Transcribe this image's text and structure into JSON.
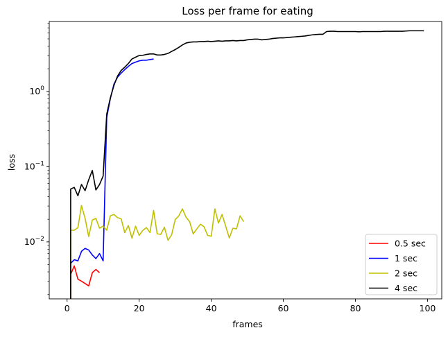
{
  "chart_data": {
    "type": "line",
    "title": "Loss per frame for eating",
    "xlabel": "frames",
    "ylabel": "loss",
    "xlim": [
      -4.95,
      103.95
    ],
    "ylim": [
      0.00175,
      8.5
    ],
    "yscale": "log",
    "x_ticks": [
      0,
      20,
      40,
      60,
      80,
      100
    ],
    "y_ticks": [
      {
        "value": 0.01,
        "base": "10",
        "exp": "−2"
      },
      {
        "value": 0.1,
        "base": "10",
        "exp": "−1"
      },
      {
        "value": 1,
        "base": "10",
        "exp": "0"
      }
    ],
    "legend_position": "lower right",
    "grid": false,
    "series": [
      {
        "name": "0.5 sec",
        "color": "#ff0000",
        "points": [
          [
            1,
            0.0012
          ],
          [
            1,
            0.0037
          ],
          [
            2,
            0.0048
          ],
          [
            3,
            0.0032
          ],
          [
            4,
            0.003
          ],
          [
            5,
            0.0028
          ],
          [
            6,
            0.0026
          ],
          [
            7,
            0.0039
          ],
          [
            8,
            0.0043
          ],
          [
            9,
            0.0039
          ]
        ]
      },
      {
        "name": "1 sec",
        "color": "#0000ff",
        "points": [
          [
            1,
            0.0012
          ],
          [
            1,
            0.0052
          ],
          [
            2,
            0.0058
          ],
          [
            3,
            0.0056
          ],
          [
            4,
            0.0075
          ],
          [
            5,
            0.0082
          ],
          [
            6,
            0.0078
          ],
          [
            7,
            0.0067
          ],
          [
            8,
            0.006
          ],
          [
            9,
            0.007
          ],
          [
            10,
            0.0056
          ],
          [
            11,
            0.45
          ],
          [
            12,
            0.8
          ],
          [
            13,
            1.25
          ],
          [
            14,
            1.55
          ],
          [
            15,
            1.75
          ],
          [
            16,
            1.95
          ],
          [
            17,
            2.15
          ],
          [
            18,
            2.35
          ],
          [
            19,
            2.45
          ],
          [
            20,
            2.55
          ],
          [
            21,
            2.6
          ],
          [
            22,
            2.6
          ],
          [
            23,
            2.65
          ],
          [
            24,
            2.7
          ]
        ]
      },
      {
        "name": "2 sec",
        "color": "#bfbf00",
        "points": [
          [
            1,
            0.0012
          ],
          [
            1,
            0.0143
          ],
          [
            2,
            0.0143
          ],
          [
            3,
            0.0155
          ],
          [
            4,
            0.0305
          ],
          [
            5,
            0.0205
          ],
          [
            6,
            0.0118
          ],
          [
            7,
            0.0195
          ],
          [
            8,
            0.0205
          ],
          [
            9,
            0.0152
          ],
          [
            10,
            0.0162
          ],
          [
            11,
            0.0143
          ],
          [
            12,
            0.0222
          ],
          [
            13,
            0.0232
          ],
          [
            14,
            0.021
          ],
          [
            15,
            0.0203
          ],
          [
            16,
            0.0133
          ],
          [
            17,
            0.0165
          ],
          [
            18,
            0.0112
          ],
          [
            19,
            0.0162
          ],
          [
            20,
            0.0122
          ],
          [
            21,
            0.0142
          ],
          [
            22,
            0.0155
          ],
          [
            23,
            0.0133
          ],
          [
            24,
            0.0262
          ],
          [
            25,
            0.0128
          ],
          [
            26,
            0.0126
          ],
          [
            27,
            0.0157
          ],
          [
            28,
            0.0105
          ],
          [
            29,
            0.0124
          ],
          [
            30,
            0.0198
          ],
          [
            31,
            0.0222
          ],
          [
            32,
            0.0275
          ],
          [
            33,
            0.0213
          ],
          [
            34,
            0.0186
          ],
          [
            35,
            0.0128
          ],
          [
            36,
            0.0149
          ],
          [
            37,
            0.0172
          ],
          [
            38,
            0.0159
          ],
          [
            39,
            0.0122
          ],
          [
            40,
            0.0119
          ],
          [
            41,
            0.0275
          ],
          [
            42,
            0.0178
          ],
          [
            43,
            0.0232
          ],
          [
            44,
            0.0162
          ],
          [
            45,
            0.0113
          ],
          [
            46,
            0.0152
          ],
          [
            47,
            0.0149
          ],
          [
            48,
            0.0222
          ],
          [
            49,
            0.0186
          ]
        ]
      },
      {
        "name": "4 sec",
        "color": "#000000",
        "points": [
          [
            1,
            0.0012
          ],
          [
            1,
            0.0505
          ],
          [
            2,
            0.053
          ],
          [
            3,
            0.041
          ],
          [
            4,
            0.058
          ],
          [
            5,
            0.048
          ],
          [
            6,
            0.067
          ],
          [
            7,
            0.089
          ],
          [
            8,
            0.049
          ],
          [
            9,
            0.058
          ],
          [
            10,
            0.075
          ],
          [
            11,
            0.5
          ],
          [
            12,
            0.82
          ],
          [
            13,
            1.2
          ],
          [
            14,
            1.6
          ],
          [
            15,
            1.9
          ],
          [
            16,
            2.1
          ],
          [
            17,
            2.35
          ],
          [
            18,
            2.7
          ],
          [
            19,
            2.85
          ],
          [
            20,
            3.0
          ],
          [
            21,
            3.02
          ],
          [
            22,
            3.1
          ],
          [
            23,
            3.15
          ],
          [
            24,
            3.15
          ],
          [
            25,
            3.05
          ],
          [
            26,
            3.05
          ],
          [
            27,
            3.1
          ],
          [
            28,
            3.2
          ],
          [
            29,
            3.4
          ],
          [
            30,
            3.6
          ],
          [
            31,
            3.85
          ],
          [
            32,
            4.15
          ],
          [
            33,
            4.4
          ],
          [
            34,
            4.5
          ],
          [
            35,
            4.55
          ],
          [
            36,
            4.55
          ],
          [
            37,
            4.6
          ],
          [
            38,
            4.6
          ],
          [
            39,
            4.65
          ],
          [
            40,
            4.6
          ],
          [
            41,
            4.65
          ],
          [
            42,
            4.7
          ],
          [
            43,
            4.65
          ],
          [
            44,
            4.7
          ],
          [
            45,
            4.7
          ],
          [
            46,
            4.75
          ],
          [
            47,
            4.7
          ],
          [
            48,
            4.75
          ],
          [
            49,
            4.75
          ],
          [
            50,
            4.85
          ],
          [
            51,
            4.9
          ],
          [
            52,
            4.95
          ],
          [
            53,
            4.95
          ],
          [
            54,
            4.85
          ],
          [
            55,
            4.9
          ],
          [
            56,
            4.95
          ],
          [
            57,
            5.05
          ],
          [
            58,
            5.1
          ],
          [
            59,
            5.15
          ],
          [
            60,
            5.15
          ],
          [
            61,
            5.2
          ],
          [
            62,
            5.25
          ],
          [
            63,
            5.3
          ],
          [
            64,
            5.35
          ],
          [
            65,
            5.4
          ],
          [
            66,
            5.45
          ],
          [
            67,
            5.55
          ],
          [
            68,
            5.65
          ],
          [
            69,
            5.7
          ],
          [
            70,
            5.75
          ],
          [
            71,
            5.75
          ],
          [
            72,
            6.25
          ],
          [
            73,
            6.3
          ],
          [
            74,
            6.3
          ],
          [
            75,
            6.25
          ],
          [
            76,
            6.25
          ],
          [
            77,
            6.25
          ],
          [
            78,
            6.25
          ],
          [
            79,
            6.25
          ],
          [
            80,
            6.25
          ],
          [
            81,
            6.2
          ],
          [
            82,
            6.25
          ],
          [
            83,
            6.25
          ],
          [
            84,
            6.25
          ],
          [
            85,
            6.25
          ],
          [
            86,
            6.25
          ],
          [
            87,
            6.25
          ],
          [
            88,
            6.3
          ],
          [
            89,
            6.3
          ],
          [
            90,
            6.3
          ],
          [
            91,
            6.3
          ],
          [
            92,
            6.3
          ],
          [
            93,
            6.3
          ],
          [
            94,
            6.35
          ],
          [
            95,
            6.4
          ],
          [
            96,
            6.4
          ],
          [
            97,
            6.4
          ],
          [
            98,
            6.4
          ],
          [
            99,
            6.4
          ]
        ]
      }
    ]
  }
}
